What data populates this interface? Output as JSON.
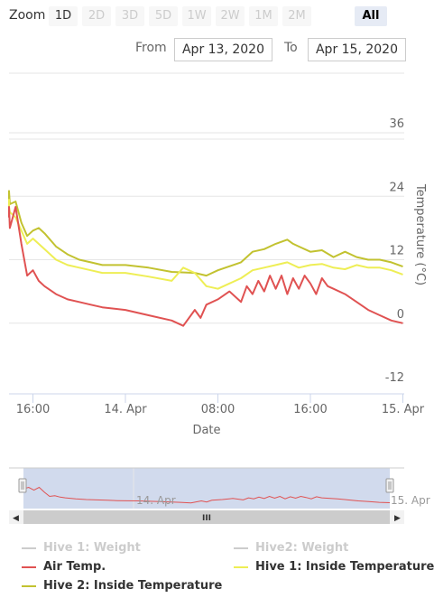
{
  "range_selector": {
    "zoom_label": "Zoom",
    "buttons": [
      {
        "label": "1D",
        "state": "enabled"
      },
      {
        "label": "2D",
        "state": "disabled"
      },
      {
        "label": "3D",
        "state": "disabled"
      },
      {
        "label": "5D",
        "state": "disabled"
      },
      {
        "label": "1W",
        "state": "disabled"
      },
      {
        "label": "2W",
        "state": "disabled"
      },
      {
        "label": "1M",
        "state": "disabled"
      },
      {
        "label": "2M",
        "state": "disabled"
      },
      {
        "label": "All",
        "state": "selected"
      }
    ],
    "from_label": "From",
    "from_value": "Apr 13, 2020",
    "to_label": "To",
    "to_value": "Apr 15, 2020"
  },
  "colors": {
    "air_temp": "#e05252",
    "hive1_inside": "#eeee55",
    "hive2_inside": "#c2c230",
    "hidden": "#cccccc",
    "navigator_fill": "#ccd6eb"
  },
  "chart_data": {
    "type": "line",
    "xlabel": "Date",
    "ylabel": "Temperature (°C)",
    "y_axis_side": "right",
    "ylim": [
      -12,
      36
    ],
    "yticks": [
      "36",
      "24",
      "12",
      "0",
      "-12"
    ],
    "ytick_values": [
      36,
      24,
      12,
      0,
      -12
    ],
    "xlim": [
      "2020-04-13 13:00",
      "2020-04-15 00:00"
    ],
    "xticks": [
      {
        "label": "16:00",
        "t": "2020-04-13 16:00"
      },
      {
        "label": "14. Apr",
        "t": "2020-04-14 00:00"
      },
      {
        "label": "08:00",
        "t": "2020-04-14 08:00"
      },
      {
        "label": "16:00",
        "t": "2020-04-14 16:00"
      },
      {
        "label": "15. Apr",
        "t": "2020-04-15 00:00"
      }
    ],
    "grid": "horizontal",
    "series": [
      {
        "name": "Hive 2: Inside Temperature",
        "color": "#c2c230",
        "x": [
          "2020-04-13 13:00",
          "2020-04-13 13:30",
          "2020-04-13 14:00",
          "2020-04-13 14:30",
          "2020-04-13 15:00",
          "2020-04-13 15:30",
          "2020-04-13 16:00",
          "2020-04-13 16:30",
          "2020-04-13 17:00",
          "2020-04-13 18:00",
          "2020-04-13 19:00",
          "2020-04-13 20:00",
          "2020-04-13 21:00",
          "2020-04-13 22:00",
          "2020-04-14 00:00",
          "2020-04-14 02:00",
          "2020-04-14 04:00",
          "2020-04-14 06:00",
          "2020-04-14 07:00",
          "2020-04-14 08:00",
          "2020-04-14 10:00",
          "2020-04-14 11:00",
          "2020-04-14 12:00",
          "2020-04-14 13:00",
          "2020-04-14 14:00",
          "2020-04-14 14:30",
          "2020-04-14 15:00",
          "2020-04-14 16:00",
          "2020-04-14 17:00",
          "2020-04-14 18:00",
          "2020-04-14 19:00",
          "2020-04-14 20:00",
          "2020-04-14 21:00",
          "2020-04-14 22:00",
          "2020-04-14 23:00",
          "2020-04-15 00:00"
        ],
        "values": [
          22.5,
          25,
          22.5,
          23,
          19,
          16.5,
          17.5,
          18,
          17,
          14.5,
          13,
          12,
          11.5,
          11,
          11,
          10.5,
          9.7,
          9.5,
          9,
          10,
          11.5,
          13.5,
          14,
          15,
          15.8,
          15,
          14.5,
          13.5,
          13.8,
          12.5,
          13.5,
          12.5,
          12,
          12,
          11.5,
          10.7
        ]
      },
      {
        "name": "Hive 1: Inside Temperature",
        "color": "#eeee55",
        "x": [
          "2020-04-13 13:00",
          "2020-04-13 13:30",
          "2020-04-13 14:00",
          "2020-04-13 14:30",
          "2020-04-13 15:00",
          "2020-04-13 15:30",
          "2020-04-13 16:00",
          "2020-04-13 17:00",
          "2020-04-13 18:00",
          "2020-04-13 19:00",
          "2020-04-13 20:00",
          "2020-04-13 21:00",
          "2020-04-13 22:00",
          "2020-04-14 00:00",
          "2020-04-14 02:00",
          "2020-04-14 04:00",
          "2020-04-14 05:00",
          "2020-04-14 06:00",
          "2020-04-14 07:00",
          "2020-04-14 08:00",
          "2020-04-14 09:00",
          "2020-04-14 10:00",
          "2020-04-14 11:00",
          "2020-04-14 12:00",
          "2020-04-14 13:00",
          "2020-04-14 14:00",
          "2020-04-14 15:00",
          "2020-04-14 16:00",
          "2020-04-14 17:00",
          "2020-04-14 18:00",
          "2020-04-14 19:00",
          "2020-04-14 20:00",
          "2020-04-14 21:00",
          "2020-04-14 22:00",
          "2020-04-14 23:00",
          "2020-04-15 00:00"
        ],
        "values": [
          23.5,
          22,
          21,
          20,
          17.5,
          15,
          16,
          14,
          12,
          11,
          10.5,
          10,
          9.5,
          9.5,
          8.8,
          8,
          10.5,
          9.5,
          7,
          6.5,
          7.5,
          8.5,
          10,
          10.5,
          11,
          11.5,
          10.5,
          11,
          11.2,
          10.5,
          10.2,
          11,
          10.5,
          10.5,
          10,
          9.2
        ]
      },
      {
        "name": "Air Temp.",
        "color": "#e05252",
        "x": [
          "2020-04-13 13:00",
          "2020-04-13 13:30",
          "2020-04-13 14:00",
          "2020-04-13 14:30",
          "2020-04-13 15:00",
          "2020-04-13 15:30",
          "2020-04-13 16:00",
          "2020-04-13 16:30",
          "2020-04-13 17:00",
          "2020-04-13 18:00",
          "2020-04-13 19:00",
          "2020-04-13 20:00",
          "2020-04-13 21:00",
          "2020-04-13 22:00",
          "2020-04-14 00:00",
          "2020-04-14 02:00",
          "2020-04-14 04:00",
          "2020-04-14 05:00",
          "2020-04-14 06:00",
          "2020-04-14 06:30",
          "2020-04-14 07:00",
          "2020-04-14 08:00",
          "2020-04-14 09:00",
          "2020-04-14 10:00",
          "2020-04-14 10:30",
          "2020-04-14 11:00",
          "2020-04-14 11:30",
          "2020-04-14 12:00",
          "2020-04-14 12:30",
          "2020-04-14 13:00",
          "2020-04-14 13:30",
          "2020-04-14 14:00",
          "2020-04-14 14:30",
          "2020-04-14 15:00",
          "2020-04-14 15:30",
          "2020-04-14 16:00",
          "2020-04-14 16:30",
          "2020-04-14 17:00",
          "2020-04-14 17:30",
          "2020-04-14 18:00",
          "2020-04-14 19:00",
          "2020-04-14 20:00",
          "2020-04-14 21:00",
          "2020-04-14 22:00",
          "2020-04-14 23:00",
          "2020-04-15 00:00"
        ],
        "values": [
          20,
          22,
          18,
          22,
          15,
          9,
          10,
          8,
          7,
          5.5,
          4.5,
          4,
          3.5,
          3,
          2.5,
          1.5,
          0.5,
          -0.5,
          2.5,
          1,
          3.5,
          4.5,
          6,
          4,
          7,
          5.5,
          8,
          6,
          9,
          6.5,
          9,
          5.5,
          8.5,
          6.5,
          9,
          7.5,
          5.5,
          8.5,
          7,
          6.5,
          5.5,
          4,
          2.5,
          1.5,
          0.5,
          0
        ]
      }
    ]
  },
  "navigator": {
    "tick_label_1": "14. Apr",
    "tick_label_2": "15. Apr",
    "scrollbar_grip": "III",
    "left_arrow": "◀",
    "right_arrow": "▶"
  },
  "legend": {
    "items": [
      {
        "name": "Hive 1: Weight",
        "color": "#cccccc",
        "visible": false
      },
      {
        "name": "Hive2: Weight",
        "color": "#cccccc",
        "visible": false
      },
      {
        "name": "Air Temp.",
        "color": "#e05252",
        "visible": true
      },
      {
        "name": "Hive 1: Inside Temperature",
        "color": "#eeee55",
        "visible": true
      },
      {
        "name": "Hive 2: Inside Temperature",
        "color": "#c2c230",
        "visible": true
      }
    ]
  }
}
